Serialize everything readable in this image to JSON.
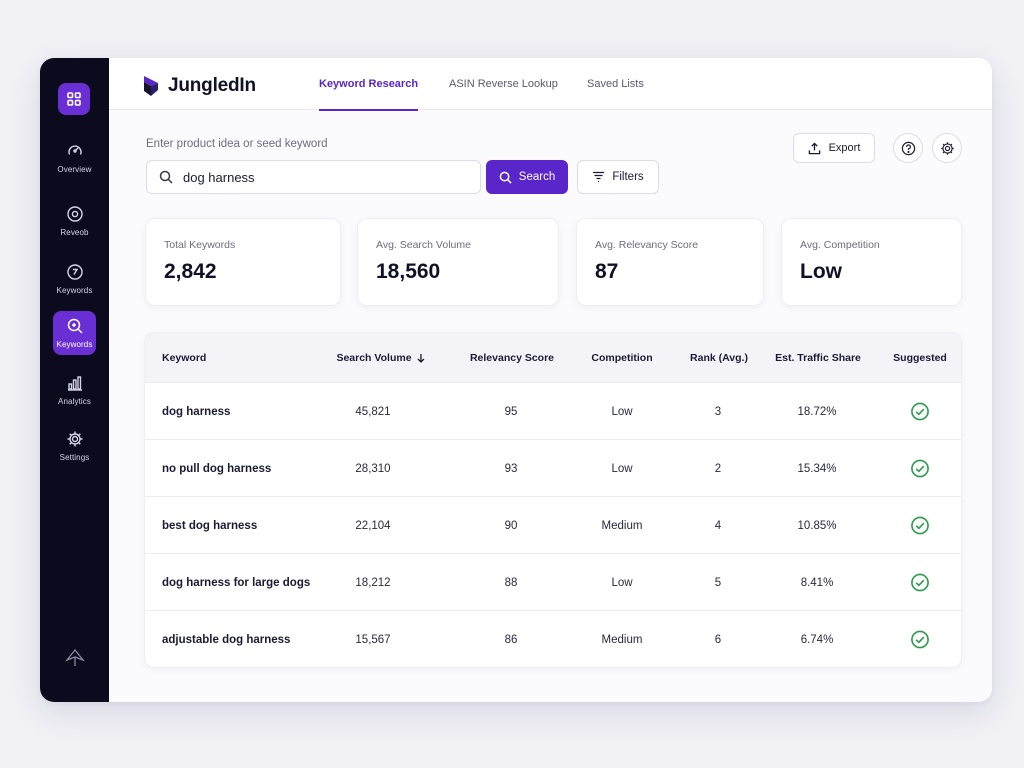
{
  "app": {
    "brand_name": "JungledIn"
  },
  "sidebar": {
    "items": [
      {
        "label": "Overview",
        "icon": "overview-icon"
      },
      {
        "label": "Reveob",
        "icon": "target-icon"
      },
      {
        "label": "Keywords",
        "icon": "keyword-tag-icon"
      },
      {
        "label": "Keywords",
        "icon": "keyword-search-icon",
        "active": true
      },
      {
        "label": "Analytics",
        "icon": "bar-chart-icon"
      },
      {
        "label": "Settings",
        "icon": "gear-icon"
      }
    ]
  },
  "tabs": [
    {
      "label": "Keyword Research",
      "active": true
    },
    {
      "label": "ASIN Reverse Lookup"
    },
    {
      "label": "Saved Lists"
    }
  ],
  "search": {
    "label": "Enter product idea or seed keyword",
    "value": "dog harness",
    "button_label": "Search",
    "filters_label": "Filters"
  },
  "toolbar": {
    "export_label": "Export"
  },
  "stats": [
    {
      "label": "Total Keywords",
      "value": "2,842"
    },
    {
      "label": "Avg. Search Volume",
      "value": "18,560"
    },
    {
      "label": "Avg. Relevancy Score",
      "value": "87"
    },
    {
      "label": "Avg. Competition",
      "value": "Low"
    }
  ],
  "table": {
    "columns": [
      "Keyword",
      "Search Volume",
      "Relevancy Score",
      "Competition",
      "Rank (Avg.)",
      "Est. Traffic Share",
      "Suggested"
    ],
    "sorted_column": "Search Volume",
    "sort_direction": "descending",
    "rows": [
      {
        "keyword": "dog harness",
        "volume": "45,821",
        "relevancy": "95",
        "competition": "Low",
        "rank": "3",
        "share": "18.72%",
        "suggested": true
      },
      {
        "keyword": "no pull dog harness",
        "volume": "28,310",
        "relevancy": "93",
        "competition": "Low",
        "rank": "2",
        "share": "15.34%",
        "suggested": true
      },
      {
        "keyword": "best dog harness",
        "volume": "22,104",
        "relevancy": "90",
        "competition": "Medium",
        "rank": "4",
        "share": "10.85%",
        "suggested": true
      },
      {
        "keyword": "dog harness for large dogs",
        "volume": "18,212",
        "relevancy": "88",
        "competition": "Low",
        "rank": "5",
        "share": "8.41%",
        "suggested": true
      },
      {
        "keyword": "adjustable dog harness",
        "volume": "15,567",
        "relevancy": "86",
        "competition": "Medium",
        "rank": "6",
        "share": "6.74%",
        "suggested": true
      }
    ]
  },
  "colors": {
    "accent": "#5a26c9",
    "sidebar_bg": "#0c0b1e",
    "success": "#2a9d4a"
  }
}
